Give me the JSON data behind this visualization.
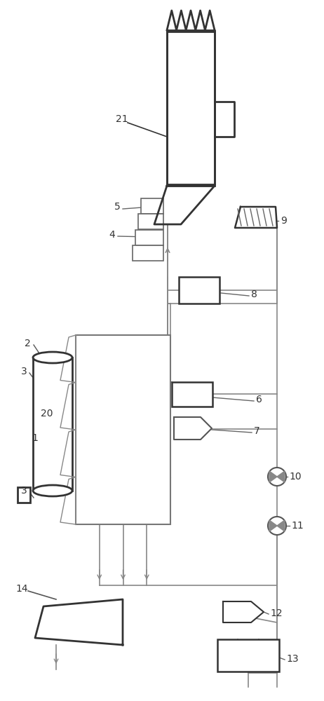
{
  "bg_color": "#ffffff",
  "lc": "#888888",
  "dc": "#333333",
  "fig_width": 4.62,
  "fig_height": 10.0,
  "dpi": 100
}
